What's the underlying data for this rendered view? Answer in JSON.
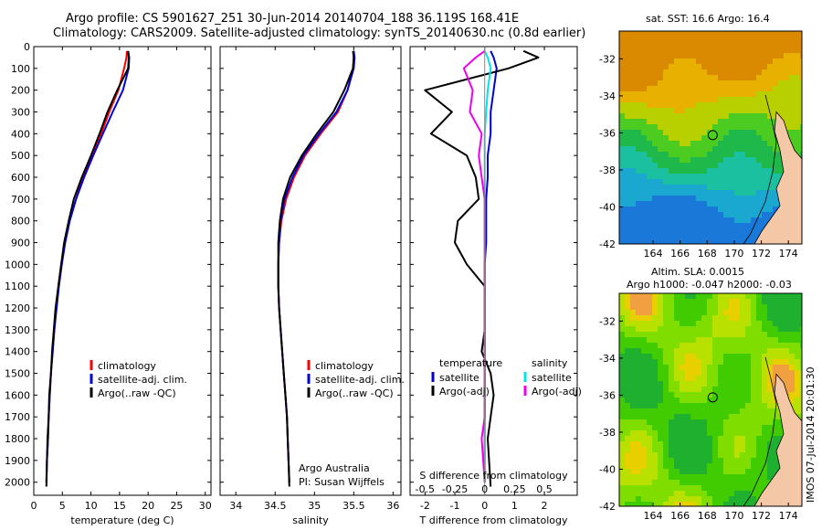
{
  "header": {
    "title_line1": "Argo profile: CS 5901627_251 30-Jun-2014 20140704_188 36.119S 168.41E",
    "title_line2": "Climatology: CARS2009. Satellite-adjusted climatology: synTS_20140630.nc (0.8d earlier)"
  },
  "colors": {
    "climatology": "#ff0000",
    "satellite": "#0000dd",
    "argo": "#000000",
    "salinity_satellite": "#00e5e5",
    "salinity_argo": "#ee00ee",
    "land": "#f4c8a6"
  },
  "chart_data": [
    {
      "type": "line",
      "panel": "temperature",
      "xlabel": "temperature (deg C)",
      "ylabel": "",
      "xlim": [
        0,
        31
      ],
      "ylim": [
        2060,
        0
      ],
      "y_ticks": [
        0,
        100,
        200,
        300,
        400,
        500,
        600,
        700,
        800,
        900,
        1000,
        1100,
        1200,
        1300,
        1400,
        1500,
        1600,
        1700,
        1800,
        1900,
        2000
      ],
      "x_ticks": [
        0,
        5,
        10,
        15,
        20,
        25,
        30
      ],
      "legend": [
        "climatology",
        "satellite-adj. clim.",
        "Argo(..raw -QC)"
      ],
      "legend_placement": "lower-right",
      "series": [
        {
          "name": "climatology",
          "x": [
            16.3,
            16.2,
            15.8,
            14.8,
            13.2,
            11.8,
            10.2,
            8.6,
            7.4,
            6.2,
            5.4,
            4.8,
            4.3,
            3.9,
            3.6,
            3.3,
            3.0,
            2.8,
            2.6,
            2.5,
            2.3,
            2.2
          ],
          "y": [
            20,
            50,
            100,
            200,
            300,
            400,
            500,
            600,
            700,
            800,
            900,
            1000,
            1100,
            1200,
            1300,
            1400,
            1500,
            1600,
            1700,
            1800,
            1900,
            2000
          ]
        },
        {
          "name": "satellite-adj. clim.",
          "x": [
            16.5,
            16.7,
            16.6,
            15.6,
            13.8,
            12.1,
            10.4,
            8.8,
            7.4,
            6.3,
            5.5,
            4.9,
            4.4,
            4.0,
            3.6,
            3.3,
            3.0,
            2.8,
            2.6,
            2.5,
            2.3,
            2.2
          ],
          "y": [
            20,
            50,
            100,
            200,
            300,
            400,
            500,
            600,
            700,
            800,
            900,
            1000,
            1100,
            1200,
            1300,
            1400,
            1500,
            1600,
            1700,
            1800,
            1900,
            2000
          ]
        },
        {
          "name": "Argo(..raw -QC)",
          "x": [
            16.5,
            16.6,
            16.5,
            14.6,
            12.9,
            11.5,
            10.0,
            8.4,
            7.0,
            6.1,
            5.3,
            4.8,
            4.3,
            3.8,
            3.5,
            3.2,
            3.0,
            2.7,
            2.6,
            2.4,
            2.3,
            2.2
          ],
          "y": [
            20,
            50,
            100,
            200,
            300,
            400,
            500,
            600,
            700,
            800,
            900,
            1000,
            1100,
            1200,
            1300,
            1400,
            1500,
            1600,
            1700,
            1800,
            1900,
            2020
          ]
        }
      ]
    },
    {
      "type": "line",
      "panel": "salinity",
      "xlabel": "salinity",
      "xlim": [
        33.8,
        36.1
      ],
      "ylim": [
        2060,
        0
      ],
      "x_ticks": [
        34,
        34.5,
        35,
        35.5,
        36
      ],
      "legend": [
        "climatology",
        "satellite-adj. clim.",
        "Argo(..raw -QC)"
      ],
      "legend_placement": "lower-right",
      "annotation_line1": "Argo Australia",
      "annotation_line2": "PI: Susan Wijffels",
      "series": [
        {
          "name": "climatology",
          "x": [
            35.5,
            35.5,
            35.49,
            35.42,
            35.3,
            35.08,
            34.88,
            34.74,
            34.64,
            34.58,
            34.55,
            34.54,
            34.54,
            34.55,
            34.57,
            34.59,
            34.61,
            34.63,
            34.65,
            34.66,
            34.67,
            34.68
          ],
          "y": [
            20,
            50,
            100,
            200,
            300,
            400,
            500,
            600,
            700,
            800,
            900,
            1000,
            1100,
            1200,
            1300,
            1400,
            1500,
            1600,
            1700,
            1800,
            1900,
            2000
          ]
        },
        {
          "name": "satellite-adj. clim.",
          "x": [
            35.5,
            35.51,
            35.5,
            35.42,
            35.28,
            35.06,
            34.86,
            34.72,
            34.62,
            34.57,
            34.55,
            34.54,
            34.54,
            34.55,
            34.57,
            34.59,
            34.61,
            34.63,
            34.65,
            34.66,
            34.67,
            34.68
          ],
          "y": [
            20,
            50,
            100,
            200,
            300,
            400,
            500,
            600,
            700,
            800,
            900,
            1000,
            1100,
            1200,
            1300,
            1400,
            1500,
            1600,
            1700,
            1800,
            1900,
            2000
          ]
        },
        {
          "name": "Argo(..raw -QC)",
          "x": [
            35.49,
            35.5,
            35.49,
            35.38,
            35.24,
            35.03,
            34.84,
            34.69,
            34.6,
            34.56,
            34.54,
            34.54,
            34.54,
            34.55,
            34.57,
            34.59,
            34.61,
            34.63,
            34.65,
            34.66,
            34.67,
            34.68
          ],
          "y": [
            20,
            50,
            100,
            200,
            300,
            400,
            500,
            600,
            700,
            800,
            900,
            1000,
            1100,
            1200,
            1300,
            1400,
            1500,
            1600,
            1700,
            1800,
            1900,
            2020
          ]
        }
      ]
    },
    {
      "type": "line",
      "panel": "difference",
      "xlabel": "T difference from climatology",
      "xlabel_top": "S difference from climatology",
      "xlim": [
        -2.5,
        3.1
      ],
      "ylim": [
        2060,
        0
      ],
      "x_ticks": [
        -2,
        -1,
        0,
        1,
        2
      ],
      "s_tick_labels": [
        "-0.5",
        "-0.25",
        "0",
        "0.25",
        "0.5"
      ],
      "s_tick_positions": [
        -2,
        -1,
        0,
        1,
        2
      ],
      "legend_left_title": "temperature",
      "legend_right_title": "salinity",
      "legend_left": [
        "satellite",
        "Argo(-adj)"
      ],
      "legend_right": [
        "satellite",
        "Argo(-adj)"
      ],
      "series": [
        {
          "name": "satellite",
          "x": [
            0.2,
            0.3,
            0.4,
            0.3,
            0.2,
            0.2,
            0.1,
            0.1,
            0.05,
            0.05,
            0.05,
            0.0,
            0.0,
            0.0,
            0.0,
            0.0,
            0.0,
            0.0,
            0.0,
            0.0,
            0.0
          ],
          "y": [
            20,
            50,
            100,
            200,
            300,
            400,
            500,
            600,
            700,
            800,
            900,
            1000,
            1100,
            1200,
            1300,
            1400,
            1500,
            1600,
            1700,
            1800,
            2000
          ]
        },
        {
          "name": "Argo(-adj)",
          "x": [
            1.3,
            1.8,
            0.8,
            -2.0,
            -1.1,
            -1.8,
            -0.6,
            -0.3,
            -0.2,
            -0.9,
            -1.0,
            -0.6,
            0.0,
            0.0,
            0.0,
            -0.1,
            0.2,
            0.3,
            0.2,
            0.1,
            0.2
          ],
          "y": [
            20,
            50,
            100,
            200,
            300,
            400,
            500,
            600,
            700,
            800,
            900,
            1000,
            1100,
            1200,
            1300,
            1400,
            1500,
            1600,
            1700,
            1800,
            2020
          ]
        },
        {
          "name": "salinity satellite",
          "x": [
            0.0,
            0.1,
            0.2,
            0.1,
            0.05,
            0.0,
            0.0,
            0.0,
            0.0,
            0.0,
            0.0,
            0.0,
            0.0,
            0.0,
            0.0,
            0.0,
            0.0,
            0.0,
            0.0,
            0.0,
            0.0
          ],
          "y": [
            20,
            50,
            100,
            200,
            300,
            400,
            500,
            600,
            700,
            800,
            900,
            1000,
            1100,
            1200,
            1300,
            1400,
            1500,
            1600,
            1700,
            1800,
            2000
          ]
        },
        {
          "name": "salinity Argo(-adj)",
          "x": [
            0.0,
            -0.3,
            -0.7,
            -0.4,
            -0.5,
            -0.1,
            -0.2,
            -0.1,
            0.0,
            0.0,
            0.0,
            0.0,
            0.0,
            0.0,
            0.0,
            0.0,
            0.0,
            0.0,
            0.0,
            -0.1,
            0.0
          ],
          "y": [
            20,
            50,
            100,
            200,
            300,
            400,
            500,
            600,
            700,
            800,
            900,
            1000,
            1100,
            1200,
            1300,
            1400,
            1500,
            1600,
            1700,
            1800,
            2000
          ]
        }
      ]
    },
    {
      "type": "heatmap",
      "panel": "sst-map",
      "title": "sat. SST: 16.6  Argo: 16.4",
      "xlim": [
        161.5,
        175
      ],
      "ylim": [
        -42,
        -30.5
      ],
      "x_ticks": [
        164,
        166,
        168,
        170,
        172,
        174
      ],
      "y_ticks": [
        -32,
        -34,
        -36,
        -38,
        -40,
        -42
      ],
      "float_position": {
        "lon": 168.41,
        "lat": -36.119
      }
    },
    {
      "type": "heatmap",
      "panel": "sla-map",
      "title_line1": "Altim. SLA: 0.0015",
      "title_line2": "Argo h1000: -0.047 h2000: -0.03",
      "xlim": [
        161.5,
        175
      ],
      "ylim": [
        -42,
        -30.5
      ],
      "x_ticks": [
        164,
        166,
        168,
        170,
        172,
        174
      ],
      "y_ticks": [
        -32,
        -34,
        -36,
        -38,
        -40,
        -42
      ],
      "float_position": {
        "lon": 168.41,
        "lat": -36.119
      }
    }
  ],
  "stamp": "IMOS 07-Jul-2014 20:01:30"
}
